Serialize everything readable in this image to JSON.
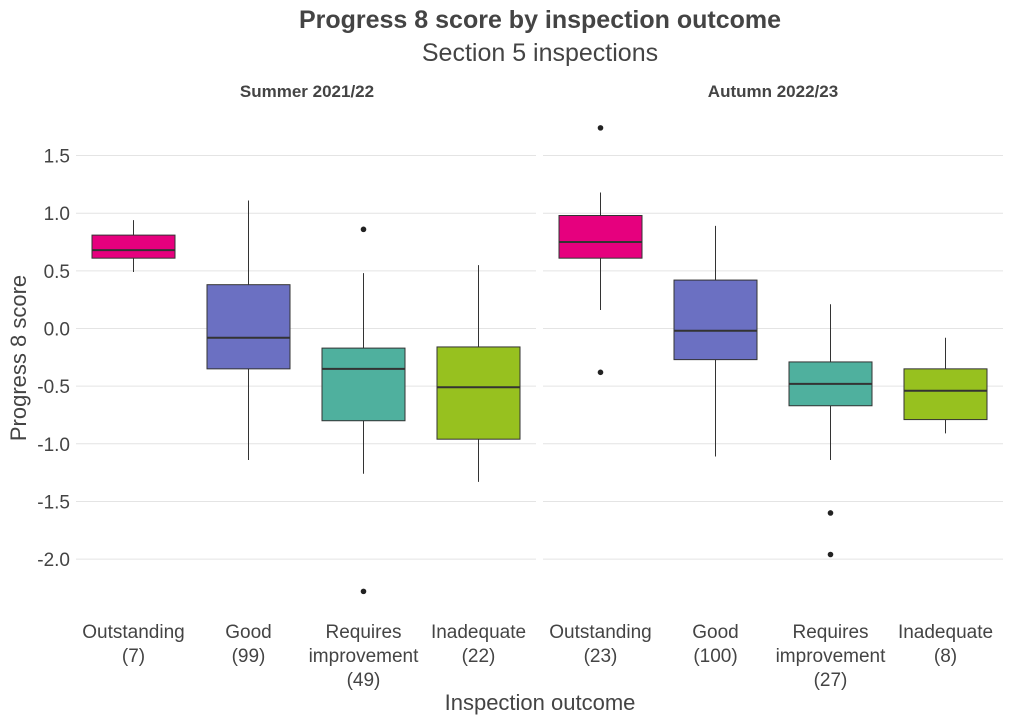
{
  "chart_data": {
    "type": "boxplot",
    "title": "Progress 8 score by inspection outcome",
    "subtitle": "Section 5 inspections",
    "xlabel": "Inspection outcome",
    "ylabel": "Progress 8 score",
    "ylim": [
      -2.4,
      1.9
    ],
    "yticks": [
      1.5,
      1.0,
      0.5,
      0.0,
      -0.5,
      -1.0,
      -1.5,
      -2.0
    ],
    "ytick_labels": [
      "1.5",
      "1.0",
      "0.5",
      "0.0",
      "-0.5",
      "-1.0",
      "-1.5",
      "-2.0"
    ],
    "grid": true,
    "legend": "none",
    "colors": {
      "Outstanding": "#e6007e",
      "Good": "#6b70c2",
      "Requires improvement": "#4fb09e",
      "Inadequate": "#97c11f"
    },
    "facets": [
      {
        "name": "Summer 2021/22",
        "categories": [
          {
            "label": "Outstanding",
            "count": "(7)",
            "whisker_low": 0.49,
            "q1": 0.61,
            "median": 0.68,
            "q3": 0.81,
            "whisker_high": 0.94,
            "outliers": []
          },
          {
            "label": "Good",
            "count": "(99)",
            "whisker_low": -1.14,
            "q1": -0.35,
            "median": -0.08,
            "q3": 0.38,
            "whisker_high": 1.11,
            "outliers": []
          },
          {
            "label": "Requires improvement",
            "count": "(49)",
            "whisker_low": -1.26,
            "q1": -0.8,
            "median": -0.35,
            "q3": -0.17,
            "whisker_high": 0.48,
            "outliers": [
              0.86,
              -2.28
            ]
          },
          {
            "label": "Inadequate",
            "count": "(22)",
            "whisker_low": -1.33,
            "q1": -0.96,
            "median": -0.51,
            "q3": -0.16,
            "whisker_high": 0.55,
            "outliers": []
          }
        ]
      },
      {
        "name": "Autumn 2022/23",
        "categories": [
          {
            "label": "Outstanding",
            "count": "(23)",
            "whisker_low": 0.16,
            "q1": 0.61,
            "median": 0.75,
            "q3": 0.98,
            "whisker_high": 1.18,
            "outliers": [
              1.74,
              -0.38
            ]
          },
          {
            "label": "Good",
            "count": "(100)",
            "whisker_low": -1.11,
            "q1": -0.27,
            "median": -0.02,
            "q3": 0.42,
            "whisker_high": 0.89,
            "outliers": []
          },
          {
            "label": "Requires improvement",
            "count": "(27)",
            "whisker_low": -1.14,
            "q1": -0.67,
            "median": -0.48,
            "q3": -0.29,
            "whisker_high": 0.21,
            "outliers": [
              -1.6,
              -1.96
            ]
          },
          {
            "label": "Inadequate",
            "count": "(8)",
            "whisker_low": -0.91,
            "q1": -0.79,
            "median": -0.54,
            "q3": -0.35,
            "whisker_high": -0.08,
            "outliers": []
          }
        ]
      }
    ]
  }
}
